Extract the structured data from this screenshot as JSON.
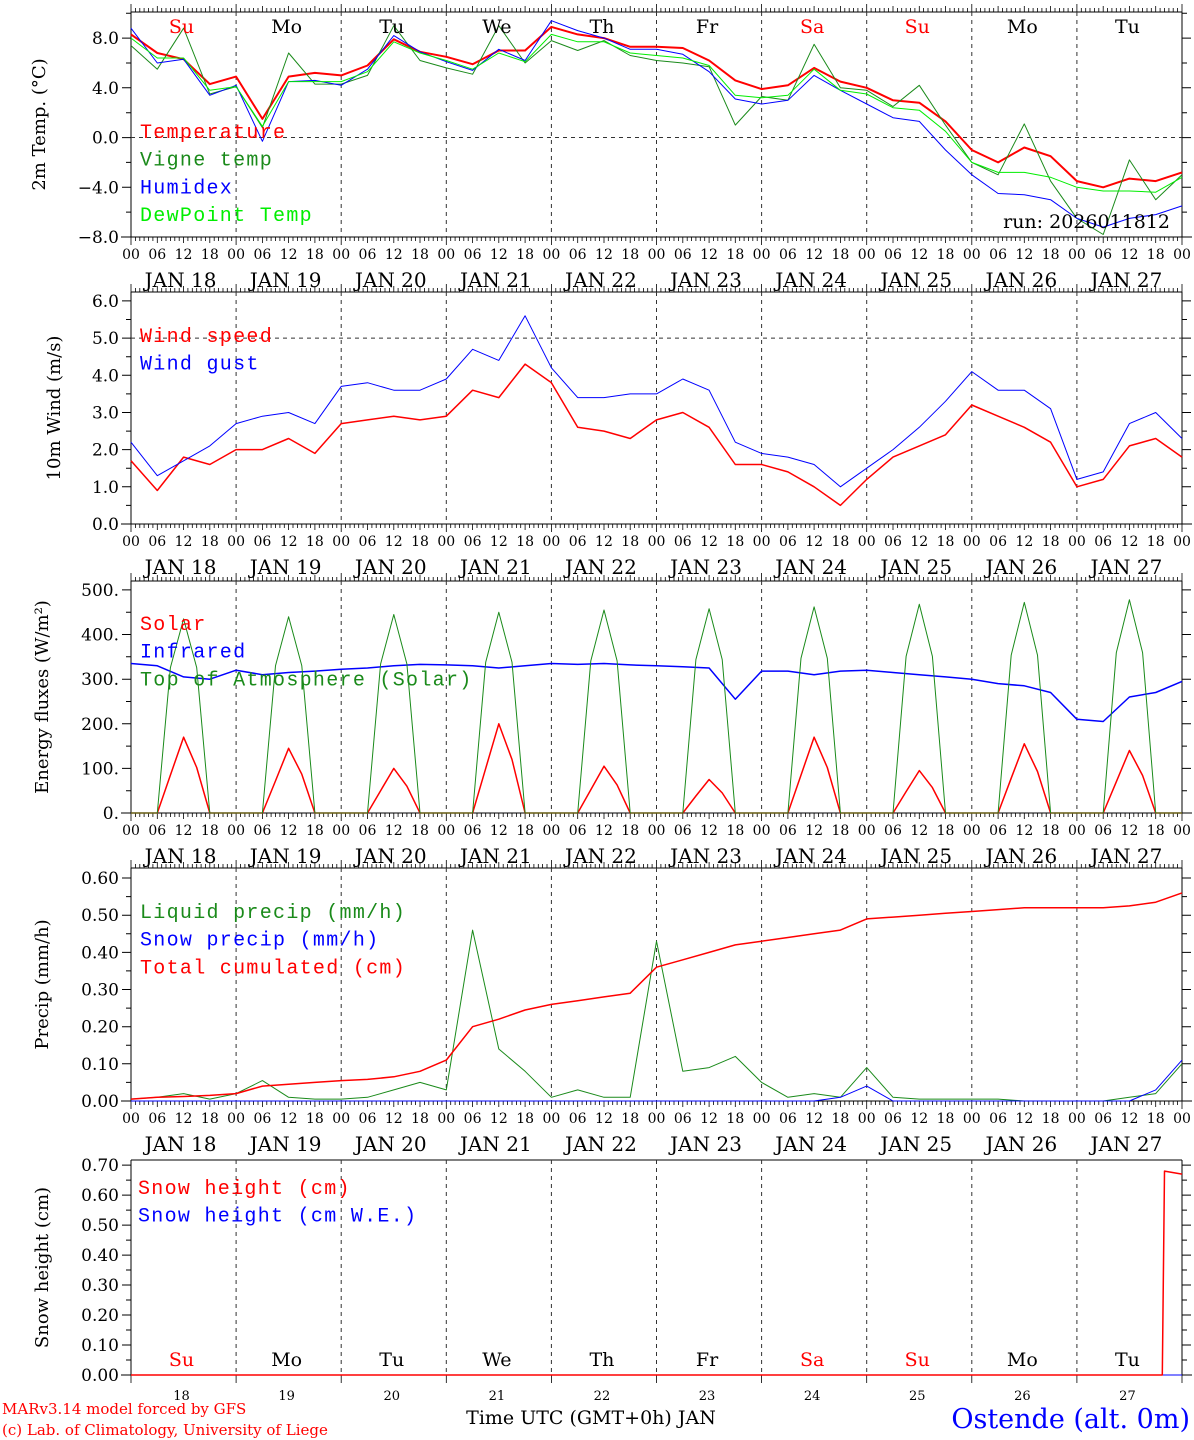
{
  "run_label": "run: 2026011812",
  "x_axis": {
    "title": "Time UTC (GMT+0h) JAN",
    "hour_labels": [
      "00",
      "06",
      "12",
      "18"
    ],
    "date_labels": [
      "JAN 18",
      "JAN 19",
      "JAN 20",
      "JAN 21",
      "JAN 22",
      "JAN 23",
      "JAN 24",
      "JAN 25",
      "JAN 26",
      "JAN 27"
    ],
    "dates": [
      "18",
      "19",
      "20",
      "21",
      "22",
      "23",
      "24",
      "25",
      "26",
      "27"
    ],
    "day_names": [
      "Su",
      "Mo",
      "Tu",
      "We",
      "Th",
      "Fr",
      "Sa",
      "Su",
      "Mo",
      "Tu"
    ],
    "day_name_colors": [
      "#ff0000",
      "#000000",
      "#000000",
      "#000000",
      "#000000",
      "#000000",
      "#ff0000",
      "#ff0000",
      "#000000",
      "#000000"
    ],
    "range_hours": [
      0,
      240
    ]
  },
  "footer": {
    "model_line": "MARv3.14 model forced by GFS",
    "copyright_line": "(c) Lab. of Climatology, University of Liege",
    "station": "Ostende (alt. 0m)"
  },
  "chart_data": [
    {
      "type": "line",
      "ylabel": "2m Temp. (°C)",
      "ylim": [
        -8,
        10.1
      ],
      "yticks": [
        {
          "value": -8,
          "label": "−8.0"
        },
        {
          "value": -4,
          "label": "−4.0"
        },
        {
          "value": 0,
          "label": "0.0"
        },
        {
          "value": 4,
          "label": "4.0"
        },
        {
          "value": 8,
          "label": "8.0"
        }
      ],
      "minor_step": 2,
      "dashed_y": 0,
      "series": [
        {
          "name": "Temperature",
          "color": "#ff0000",
          "width": 2,
          "step_hours": 6,
          "values": [
            8.3,
            6.8,
            6.3,
            4.3,
            4.9,
            1.5,
            4.9,
            5.2,
            5.0,
            5.8,
            7.9,
            6.9,
            6.5,
            5.9,
            7.0,
            7.0,
            8.9,
            8.3,
            8.0,
            7.3,
            7.3,
            7.2,
            6.2,
            4.6,
            3.9,
            4.2,
            5.6,
            4.5,
            4.0,
            3.0,
            2.8,
            1.3,
            -1.0,
            -2.0,
            -0.8,
            -1.5,
            -3.5,
            -4.0,
            -3.3,
            -3.5,
            -2.8
          ]
        },
        {
          "name": "Vigne temp",
          "color": "#1a8a1a",
          "width": 1,
          "step_hours": 6,
          "values": [
            7.4,
            5.5,
            8.8,
            3.5,
            4.1,
            0.8,
            6.8,
            4.3,
            4.3,
            5.0,
            9.0,
            6.2,
            5.6,
            5.1,
            9.0,
            6.0,
            7.8,
            7.0,
            7.8,
            6.6,
            6.2,
            6.0,
            5.7,
            1.0,
            3.3,
            3.0,
            7.5,
            4.0,
            3.8,
            2.5,
            4.2,
            1.0,
            -2.0,
            -3.0,
            1.1,
            -3.5,
            -6.5,
            -7.8,
            -1.8,
            -5.0,
            -3.0
          ]
        },
        {
          "name": "Humidex",
          "color": "#0000ff",
          "width": 1,
          "step_hours": 6,
          "values": [
            8.8,
            6.0,
            6.3,
            3.4,
            4.2,
            -0.3,
            4.5,
            4.6,
            4.2,
            5.5,
            8.2,
            6.9,
            6.1,
            5.4,
            7.1,
            6.2,
            9.4,
            8.6,
            8.0,
            7.1,
            7.1,
            6.7,
            5.3,
            3.1,
            2.7,
            3.0,
            5.0,
            3.8,
            2.7,
            1.6,
            1.3,
            -1.0,
            -3.0,
            -4.5,
            -4.6,
            -5.0,
            -6.5,
            -7.2,
            -6.5,
            -6.2,
            -5.5
          ]
        },
        {
          "name": "DewPoint Temp",
          "color": "#00ee00",
          "width": 1,
          "step_hours": 6,
          "values": [
            8.0,
            6.4,
            6.4,
            3.8,
            4.1,
            0.9,
            4.5,
            4.5,
            4.5,
            5.3,
            7.7,
            6.8,
            6.2,
            5.5,
            6.8,
            6.1,
            8.3,
            7.7,
            7.7,
            6.8,
            6.6,
            6.4,
            5.8,
            3.4,
            3.2,
            3.4,
            5.5,
            3.8,
            3.5,
            2.4,
            2.2,
            0.5,
            -2.0,
            -2.8,
            -2.8,
            -3.2,
            -4.0,
            -4.3,
            -4.3,
            -4.4,
            -3.2
          ]
        }
      ]
    },
    {
      "type": "line",
      "ylabel": "10m Wind (m/s)",
      "ylim": [
        0,
        6.24
      ],
      "yticks": [
        {
          "value": 0,
          "label": "0.0"
        },
        {
          "value": 1,
          "label": "1.0"
        },
        {
          "value": 2,
          "label": "2.0"
        },
        {
          "value": 3,
          "label": "3.0"
        },
        {
          "value": 4,
          "label": "4.0"
        },
        {
          "value": 5,
          "label": "5.0"
        },
        {
          "value": 6,
          "label": "6.0"
        }
      ],
      "minor_step": 0.5,
      "dashed_y": 5,
      "series": [
        {
          "name": "Wind speed",
          "color": "#ff0000",
          "width": 1.5,
          "step_hours": 6,
          "values": [
            1.7,
            0.9,
            1.8,
            1.6,
            2.0,
            2.0,
            2.3,
            1.9,
            2.7,
            2.8,
            2.9,
            2.8,
            2.9,
            3.6,
            3.4,
            4.3,
            3.8,
            2.6,
            2.5,
            2.3,
            2.8,
            3.0,
            2.6,
            1.6,
            1.6,
            1.4,
            1.0,
            0.5,
            1.2,
            1.8,
            2.1,
            2.4,
            3.2,
            2.9,
            2.6,
            2.2,
            1.0,
            1.2,
            2.1,
            2.3,
            1.8
          ]
        },
        {
          "name": "Wind gust",
          "color": "#0000ff",
          "width": 1,
          "step_hours": 6,
          "values": [
            2.2,
            1.3,
            1.7,
            2.1,
            2.7,
            2.9,
            3.0,
            2.7,
            3.7,
            3.8,
            3.6,
            3.6,
            3.9,
            4.7,
            4.4,
            5.6,
            4.2,
            3.4,
            3.4,
            3.5,
            3.5,
            3.9,
            3.6,
            2.2,
            1.9,
            1.8,
            1.6,
            1.0,
            1.5,
            2.0,
            2.6,
            3.3,
            4.1,
            3.6,
            3.6,
            3.1,
            1.2,
            1.4,
            2.7,
            3.0,
            2.3
          ]
        }
      ]
    },
    {
      "type": "line",
      "ylabel": "Energy fluxes (W/m²)",
      "ylim": [
        0,
        520
      ],
      "yticks": [
        {
          "value": 0,
          "label": "0."
        },
        {
          "value": 100,
          "label": "100."
        },
        {
          "value": 200,
          "label": "200."
        },
        {
          "value": 300,
          "label": "300."
        },
        {
          "value": 400,
          "label": "400."
        },
        {
          "value": 500,
          "label": "500."
        }
      ],
      "minor_step": 50,
      "dashed_y": null,
      "series": [
        {
          "name": "Solar",
          "color": "#ff0000",
          "width": 1.5,
          "step_hours": 3,
          "values": [
            0,
            0,
            0,
            85,
            170,
            102,
            0,
            0,
            0,
            0,
            0,
            72,
            145,
            87,
            0,
            0,
            0,
            0,
            0,
            50,
            100,
            60,
            0,
            0,
            0,
            0,
            0,
            100,
            200,
            120,
            0,
            0,
            0,
            0,
            0,
            52,
            105,
            63,
            0,
            0,
            0,
            0,
            0,
            38,
            75,
            45,
            0,
            0,
            0,
            0,
            0,
            85,
            170,
            102,
            0,
            0,
            0,
            0,
            0,
            48,
            95,
            57,
            0,
            0,
            0,
            0,
            0,
            78,
            155,
            93,
            0,
            0,
            0,
            0,
            0,
            70,
            140,
            84,
            0,
            0,
            0
          ]
        },
        {
          "name": "Infrared",
          "color": "#0000ff",
          "width": 1.5,
          "step_hours": 6,
          "values": [
            335,
            330,
            305,
            300,
            320,
            310,
            315,
            318,
            322,
            325,
            330,
            333,
            332,
            330,
            325,
            330,
            335,
            333,
            335,
            332,
            330,
            328,
            325,
            255,
            318,
            318,
            310,
            318,
            320,
            315,
            310,
            305,
            300,
            290,
            285,
            270,
            210,
            205,
            260,
            270,
            295
          ]
        },
        {
          "name": "Top of Atmosphere (Solar)",
          "color": "#1a8a1a",
          "width": 1,
          "step_hours": 3,
          "values": [
            0,
            0,
            0,
            326,
            435,
            326,
            0,
            0,
            0,
            0,
            0,
            330,
            440,
            330,
            0,
            0,
            0,
            0,
            0,
            334,
            445,
            334,
            0,
            0,
            0,
            0,
            0,
            338,
            450,
            338,
            0,
            0,
            0,
            0,
            0,
            341,
            455,
            341,
            0,
            0,
            0,
            0,
            0,
            344,
            458,
            344,
            0,
            0,
            0,
            0,
            0,
            347,
            462,
            347,
            0,
            0,
            0,
            0,
            0,
            351,
            468,
            351,
            0,
            0,
            0,
            0,
            0,
            354,
            472,
            354,
            0,
            0,
            0,
            0,
            0,
            359,
            478,
            359,
            0,
            0,
            0
          ]
        }
      ]
    },
    {
      "type": "line",
      "ylabel": "Precip (mm/h)",
      "ylim": [
        0,
        0.627
      ],
      "yticks": [
        {
          "value": 0,
          "label": "0.00"
        },
        {
          "value": 0.1,
          "label": "0.10"
        },
        {
          "value": 0.2,
          "label": "0.20"
        },
        {
          "value": 0.3,
          "label": "0.30"
        },
        {
          "value": 0.4,
          "label": "0.40"
        },
        {
          "value": 0.5,
          "label": "0.50"
        },
        {
          "value": 0.6,
          "label": "0.60"
        }
      ],
      "minor_step": 0.05,
      "dashed_y": null,
      "series": [
        {
          "name": "Liquid precip (mm/h)",
          "color": "#1a8a1a",
          "width": 1,
          "step_hours": 6,
          "values": [
            0.005,
            0.01,
            0.02,
            0.005,
            0.02,
            0.055,
            0.01,
            0.005,
            0.005,
            0.01,
            0.03,
            0.05,
            0.03,
            0.46,
            0.14,
            0.08,
            0.01,
            0.03,
            0.01,
            0.01,
            0.43,
            0.08,
            0.09,
            0.12,
            0.05,
            0.01,
            0.02,
            0.01,
            0.09,
            0.01,
            0.005,
            0.005,
            0.005,
            0.005,
            0,
            0,
            0,
            0,
            0.01,
            0.02,
            0.1
          ]
        },
        {
          "name": "Snow precip (mm/h)",
          "color": "#0000ff",
          "width": 1,
          "step_hours": 6,
          "values": [
            0,
            0,
            0,
            0,
            0,
            0,
            0,
            0,
            0,
            0,
            0,
            0,
            0,
            0,
            0,
            0,
            0,
            0,
            0,
            0,
            0,
            0,
            0,
            0,
            0,
            0,
            0,
            0.01,
            0.04,
            0,
            0,
            0,
            0,
            0,
            0,
            0,
            0,
            0,
            0,
            0.03,
            0.11
          ]
        },
        {
          "name": "Total cumulated (cm)",
          "color": "#ff0000",
          "width": 1.5,
          "step_hours": 6,
          "values": [
            0.005,
            0.01,
            0.012,
            0.015,
            0.02,
            0.04,
            0.045,
            0.05,
            0.055,
            0.058,
            0.065,
            0.08,
            0.11,
            0.2,
            0.22,
            0.245,
            0.26,
            0.27,
            0.28,
            0.29,
            0.36,
            0.38,
            0.4,
            0.42,
            0.43,
            0.44,
            0.45,
            0.46,
            0.49,
            0.495,
            0.5,
            0.505,
            0.51,
            0.515,
            0.52,
            0.52,
            0.52,
            0.52,
            0.525,
            0.535,
            0.56
          ]
        }
      ]
    },
    {
      "type": "line",
      "ylabel": "Snow height (cm)",
      "ylim": [
        0,
        0.717
      ],
      "yticks": [
        {
          "value": 0,
          "label": "0.00"
        },
        {
          "value": 0.1,
          "label": "0.10"
        },
        {
          "value": 0.2,
          "label": "0.20"
        },
        {
          "value": 0.3,
          "label": "0.30"
        },
        {
          "value": 0.4,
          "label": "0.40"
        },
        {
          "value": 0.5,
          "label": "0.50"
        },
        {
          "value": 0.6,
          "label": "0.60"
        },
        {
          "value": 0.7,
          "label": "0.70"
        }
      ],
      "minor_step": 0.05,
      "dashed_y": null,
      "series": [
        {
          "name": "Snow height (cm W.E.)",
          "color": "#0000ff",
          "width": 1,
          "points": [
            [
              0,
              0
            ],
            [
              240,
              0
            ]
          ]
        },
        {
          "name": "Snow height (cm)",
          "color": "#ff0000",
          "width": 1.5,
          "points": [
            [
              0,
              0
            ],
            [
              235.5,
              0
            ],
            [
              236,
              0.68
            ],
            [
              240,
              0.67
            ]
          ]
        }
      ]
    }
  ]
}
